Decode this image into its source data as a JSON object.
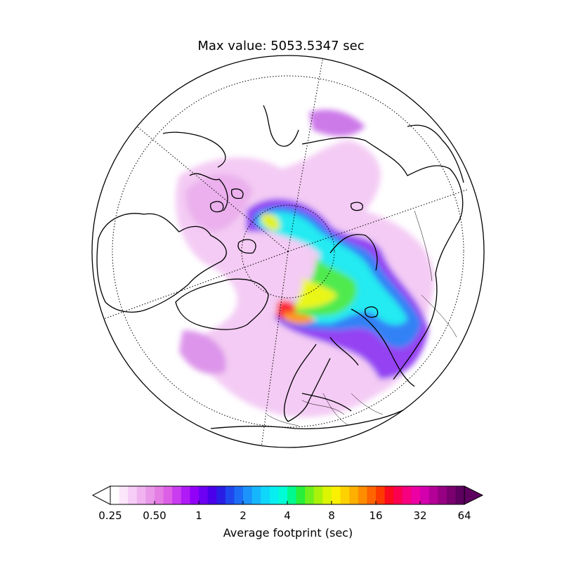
{
  "title": "Max value: 5053.5347 sec",
  "colorbar": {
    "label": "Average footprint (sec)",
    "ticks": [
      "0.25",
      "0.50",
      "1",
      "2",
      "4",
      "8",
      "16",
      "32",
      "64"
    ],
    "extend": "both",
    "colors": [
      "#ffffff",
      "#fbe6fb",
      "#f6cdf6",
      "#f0b3f0",
      "#ea98ea",
      "#e47ee4",
      "#dc5fe6",
      "#c93cf0",
      "#b01af6",
      "#9200f8",
      "#6d00f2",
      "#4a00ea",
      "#2a1de6",
      "#1f47ee",
      "#1c6cf6",
      "#1c93fb",
      "#16b6fd",
      "#0fd6fb",
      "#07eef0",
      "#00fbd7",
      "#00f98e",
      "#27ef3a",
      "#6ef01c",
      "#aaf20a",
      "#dcf500",
      "#fbf000",
      "#fdd200",
      "#feb000",
      "#fe8d00",
      "#fe6500",
      "#fd3a00",
      "#fc0a1e",
      "#fb0050",
      "#f60080",
      "#ec00a4",
      "#d400ad",
      "#b50097",
      "#970083",
      "#7a006f",
      "#5e0060"
    ]
  },
  "map": {
    "projection": "north-polar-orthographic",
    "variable": "Average footprint (sec)",
    "color_scale": "log",
    "graticule": "dotted"
  }
}
